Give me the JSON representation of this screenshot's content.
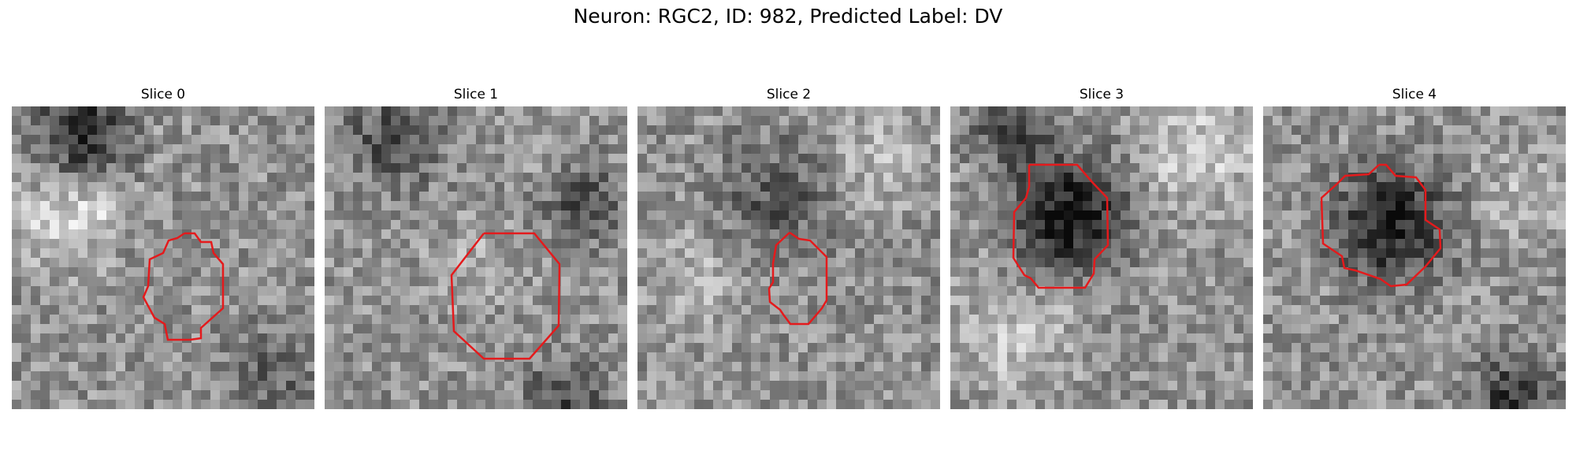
{
  "figure": {
    "title": "Neuron: RGC2, ID: 982, Predicted Label: DV",
    "contour_color": "#e41a1c",
    "colormap": "gray",
    "slices": [
      {
        "title": "Slice 0"
      },
      {
        "title": "Slice 1"
      },
      {
        "title": "Slice 2"
      },
      {
        "title": "Slice 3"
      },
      {
        "title": "Slice 4"
      }
    ]
  }
}
